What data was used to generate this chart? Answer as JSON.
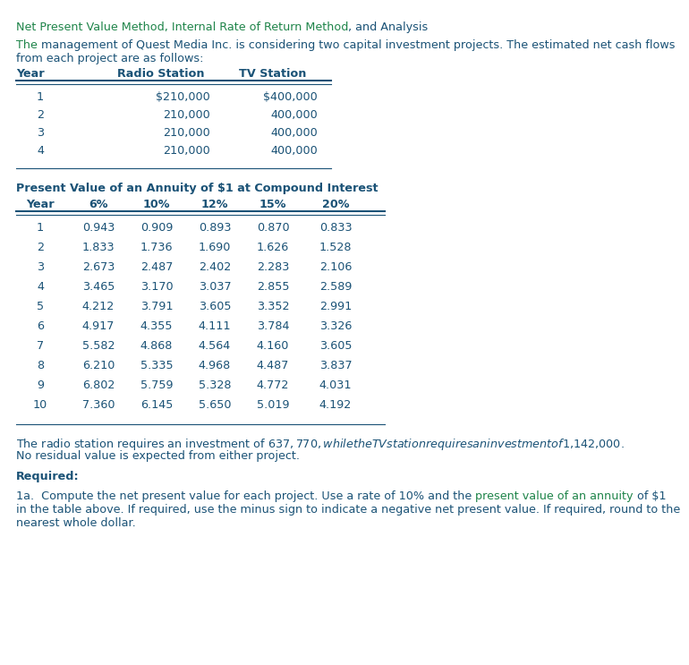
{
  "dark_blue": "#1a5276",
  "green": "#1e8449",
  "bg_color": "#ffffff",
  "fs": 9.2,
  "fs_bold": 9.2,
  "title_green": "Net Present Value Method, Internal Rate of Return Method",
  "title_blue": ", and Analysis",
  "intro_green": "The ",
  "intro_blue": "management of Quest Media Inc. is considering two capital investment projects. The estimated net cash flows",
  "intro_blue2": "from each project are as follows:",
  "t1_headers": [
    "Year",
    "Radio Station",
    "TV Station"
  ],
  "t1_data": [
    [
      "1",
      "$210,000",
      "$400,000"
    ],
    [
      "2",
      "210,000",
      "400,000"
    ],
    [
      "3",
      "210,000",
      "400,000"
    ],
    [
      "4",
      "210,000",
      "400,000"
    ]
  ],
  "t2_title": "Present Value of an Annuity of $1 at Compound Interest",
  "t2_headers": [
    "Year",
    "6%",
    "10%",
    "12%",
    "15%",
    "20%"
  ],
  "t2_data": [
    [
      "1",
      "0.943",
      "0.909",
      "0.893",
      "0.870",
      "0.833"
    ],
    [
      "2",
      "1.833",
      "1.736",
      "1.690",
      "1.626",
      "1.528"
    ],
    [
      "3",
      "2.673",
      "2.487",
      "2.402",
      "2.283",
      "2.106"
    ],
    [
      "4",
      "3.465",
      "3.170",
      "3.037",
      "2.855",
      "2.589"
    ],
    [
      "5",
      "4.212",
      "3.791",
      "3.605",
      "3.352",
      "2.991"
    ],
    [
      "6",
      "4.917",
      "4.355",
      "4.111",
      "3.784",
      "3.326"
    ],
    [
      "7",
      "5.582",
      "4.868",
      "4.564",
      "4.160",
      "3.605"
    ],
    [
      "8",
      "6.210",
      "5.335",
      "4.968",
      "4.487",
      "3.837"
    ],
    [
      "9",
      "6.802",
      "5.759",
      "5.328",
      "4.772",
      "4.031"
    ],
    [
      "10",
      "7.360",
      "6.145",
      "5.650",
      "5.019",
      "4.192"
    ]
  ],
  "para2a": "The radio station requires an investment of $637,770, while the TV station requires an investment of $1,142,000.",
  "para2b": "No residual value is expected from either project.",
  "required": "Required:",
  "p3_blue1": "1a.  Compute the net present value for each project. Use a rate of 10% and the ",
  "p3_green": "present value of an annuity",
  "p3_blue2": " of $1",
  "p3_line2": "in the table above. If required, use the minus sign to indicate a negative net present value. If required, round to the",
  "p3_line3": "nearest whole dollar."
}
